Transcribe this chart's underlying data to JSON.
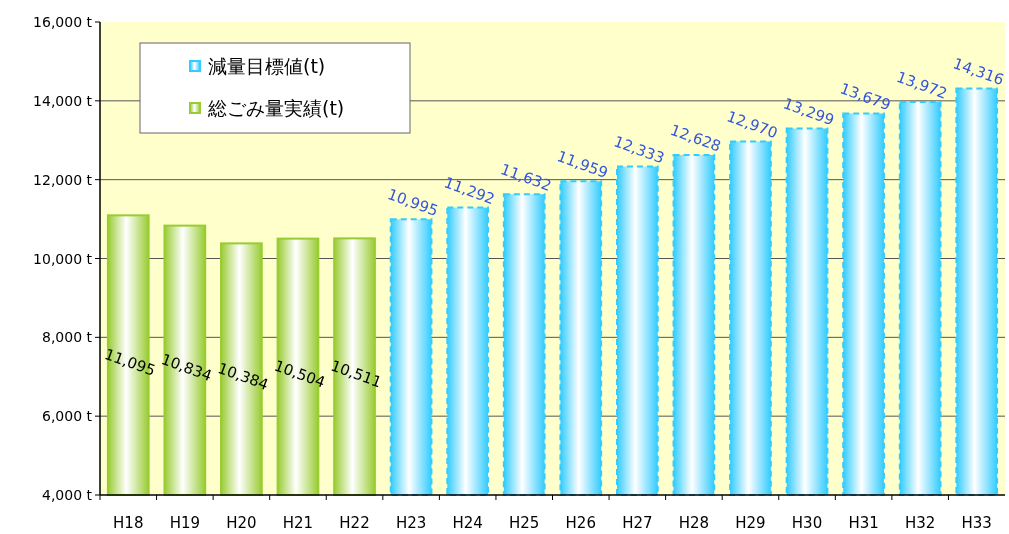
{
  "chart_data": {
    "type": "bar",
    "categories": [
      "H18",
      "H19",
      "H20",
      "H21",
      "H22",
      "H23",
      "H24",
      "H25",
      "H26",
      "H27",
      "H28",
      "H29",
      "H30",
      "H31",
      "H32",
      "H33"
    ],
    "series": [
      {
        "name": "減量目標値(t)",
        "color": "#33ccff",
        "line_style": "dashed",
        "values": [
          null,
          null,
          null,
          null,
          null,
          10995,
          11292,
          11632,
          11959,
          12333,
          12628,
          12970,
          13299,
          13679,
          13972,
          14316
        ],
        "value_labels": [
          null,
          null,
          null,
          null,
          null,
          "10,995",
          "11,292",
          "11,632",
          "11,959",
          "12,333",
          "12,628",
          "12,970",
          "13,299",
          "13,679",
          "13,972",
          "14,316"
        ]
      },
      {
        "name": "総ごみ量実績(t)",
        "color": "#99cc33",
        "line_style": "solid",
        "values": [
          11095,
          10834,
          10384,
          10504,
          10511,
          null,
          null,
          null,
          null,
          null,
          null,
          null,
          null,
          null,
          null,
          null
        ],
        "value_labels": [
          "11,095",
          "10,834",
          "10,384",
          "10,504",
          "10,511",
          null,
          null,
          null,
          null,
          null,
          null,
          null,
          null,
          null,
          null,
          null
        ]
      }
    ],
    "ylim": [
      4000,
      16000
    ],
    "yticks": [
      {
        "value": 4000,
        "label": "4,000 t"
      },
      {
        "value": 6000,
        "label": "6,000 t"
      },
      {
        "value": 8000,
        "label": "8,000 t"
      },
      {
        "value": 10000,
        "label": "10,000 t"
      },
      {
        "value": 12000,
        "label": "12,000 t"
      },
      {
        "value": 14000,
        "label": "14,000 t"
      },
      {
        "value": 16000,
        "label": "16,000 t"
      }
    ],
    "grid": "y",
    "legend": "top left"
  }
}
